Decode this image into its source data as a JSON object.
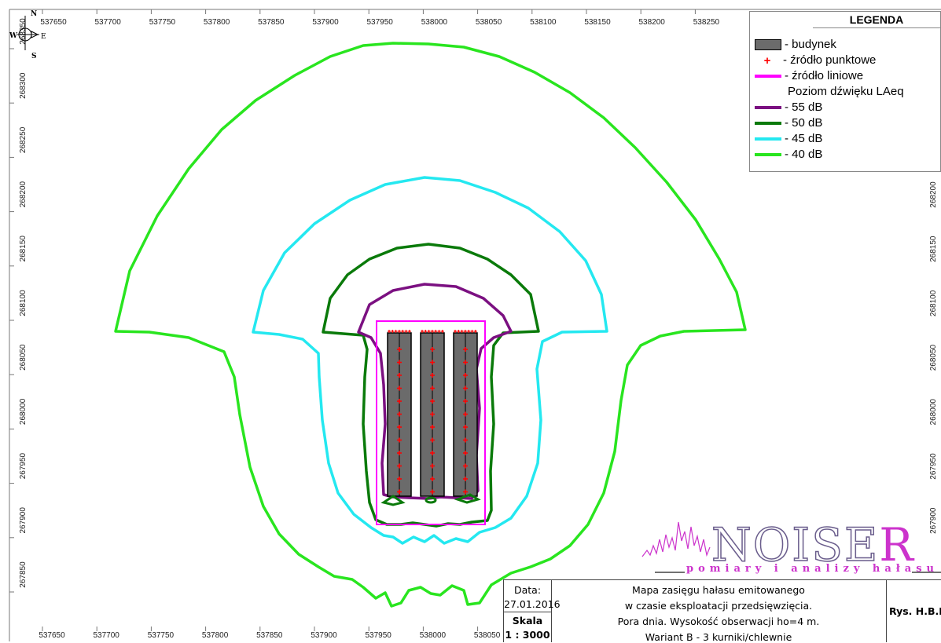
{
  "map": {
    "x_ticks_top": [
      "537650",
      "537700",
      "537750",
      "537800",
      "537850",
      "537900",
      "537950",
      "538000",
      "538050",
      "538100",
      "538150",
      "538200",
      "538250"
    ],
    "x_ticks_bottom": [
      "537650",
      "537700",
      "537750",
      "537800",
      "537850",
      "537900",
      "537950",
      "538000",
      "538050"
    ],
    "y_ticks_left": [
      "268350",
      "268300",
      "268250",
      "268200",
      "268150",
      "268100",
      "268050",
      "268000",
      "267950",
      "267900",
      "267850"
    ],
    "y_ticks_right": [
      "268200",
      "268150",
      "268100",
      "268050",
      "268000",
      "267950",
      "267900"
    ],
    "compass": {
      "n": "N",
      "s": "S",
      "e": "E",
      "w": "W"
    },
    "colors": {
      "c55": "#7b1081",
      "c50": "#0a7a0a",
      "c45": "#24e8f0",
      "c40": "#29e51f",
      "line_source": "#ff00ff",
      "point_source": "#ff0000",
      "building": "#6b6b6b"
    }
  },
  "legend": {
    "title": "LEGENDA",
    "building": "- budynek",
    "point_source": "- źródło punktowe",
    "line_source": "- źródło liniowe",
    "level_heading": "Poziom dźwięku LAeq",
    "l55": "- 55 dB",
    "l50": "- 50 dB",
    "l45": "- 45 dB",
    "l40": "- 40 dB"
  },
  "logo": {
    "name_main": "NOISE",
    "name_last": "R",
    "tagline": "pomiary i analizy hałasu"
  },
  "title_block": {
    "date_label": "Data:",
    "date_value": "27.01.2016",
    "scale_label": "Skala",
    "scale_value": "1 : 3000",
    "desc_line1": "Mapa zasięgu hałasu emitowanego",
    "desc_line2": "w czasie eksploatacji przedsięwzięcia.",
    "desc_line3": "Pora dnia. Wysokość obserwacji ho=4 m.",
    "desc_line4": "Wariant B - 3 kurniki/chlewnie",
    "figure_no": "Rys. H.B.D"
  }
}
